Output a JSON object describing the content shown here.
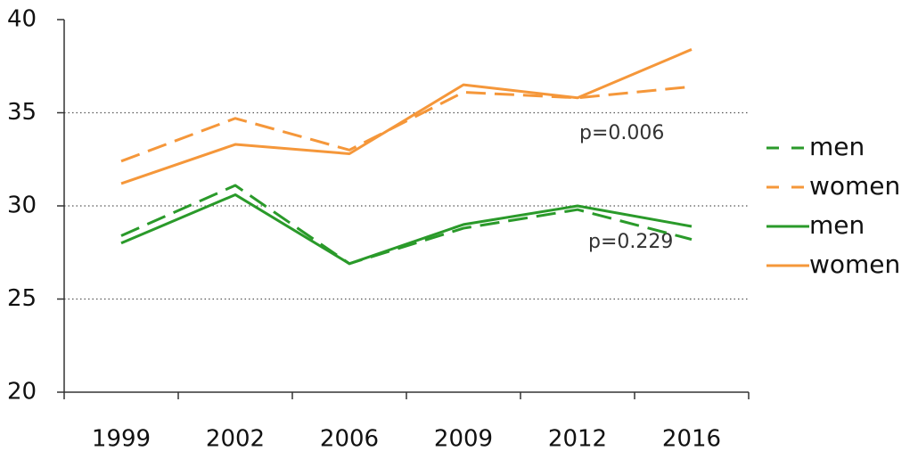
{
  "chart_data": {
    "type": "line",
    "categories": [
      "1999",
      "2002",
      "2006",
      "2009",
      "2012",
      "2016"
    ],
    "series": [
      {
        "name": "men",
        "color": "#2a9a2a",
        "dashed": true,
        "values": [
          28.4,
          31.1,
          26.9,
          28.8,
          29.8,
          28.2
        ]
      },
      {
        "name": "women",
        "color": "#f5973a",
        "dashed": true,
        "values": [
          32.4,
          34.7,
          33.0,
          36.1,
          35.8,
          36.4
        ]
      },
      {
        "name": "men",
        "color": "#2a9a2a",
        "dashed": false,
        "values": [
          28.0,
          30.6,
          26.9,
          29.0,
          30.0,
          28.9
        ]
      },
      {
        "name": "women",
        "color": "#f5973a",
        "dashed": false,
        "values": [
          31.2,
          33.3,
          32.8,
          36.5,
          35.8,
          38.4
        ]
      }
    ],
    "annotations": [
      "p=0.006",
      "p=0.229"
    ],
    "ylim": [
      20,
      40
    ],
    "yticks": [
      20,
      25,
      30,
      35,
      40
    ],
    "grid": true,
    "legend": "right"
  }
}
